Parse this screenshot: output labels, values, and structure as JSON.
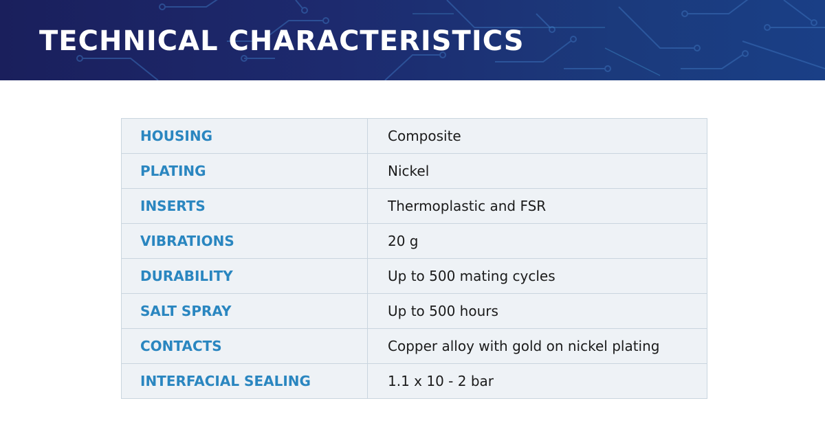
{
  "banner": {
    "title": "TECHNICAL CHARACTERISTICS"
  },
  "specs": [
    {
      "label": "HOUSING",
      "value": "Composite"
    },
    {
      "label": "PLATING",
      "value": "Nickel"
    },
    {
      "label": "INSERTS",
      "value": "Thermoplastic and FSR"
    },
    {
      "label": "VIBRATIONS",
      "value": "20 g"
    },
    {
      "label": "DURABILITY",
      "value": "Up to 500 mating cycles"
    },
    {
      "label": "SALT SPRAY",
      "value": "Up to 500 hours"
    },
    {
      "label": "CONTACTS",
      "value": "Copper alloy with gold on nickel plating"
    },
    {
      "label": "INTERFACIAL SEALING",
      "value": "1.1 x 10 - 2 bar"
    }
  ],
  "colors": {
    "banner_dark": "#1a1f5c",
    "banner_light": "#1a3f86",
    "label_blue": "#2a86c0",
    "row_background": "#eef2f6",
    "grid_line": "#c9d5df"
  },
  "icons": {
    "banner_decoration": "circuit-pattern-icon"
  }
}
